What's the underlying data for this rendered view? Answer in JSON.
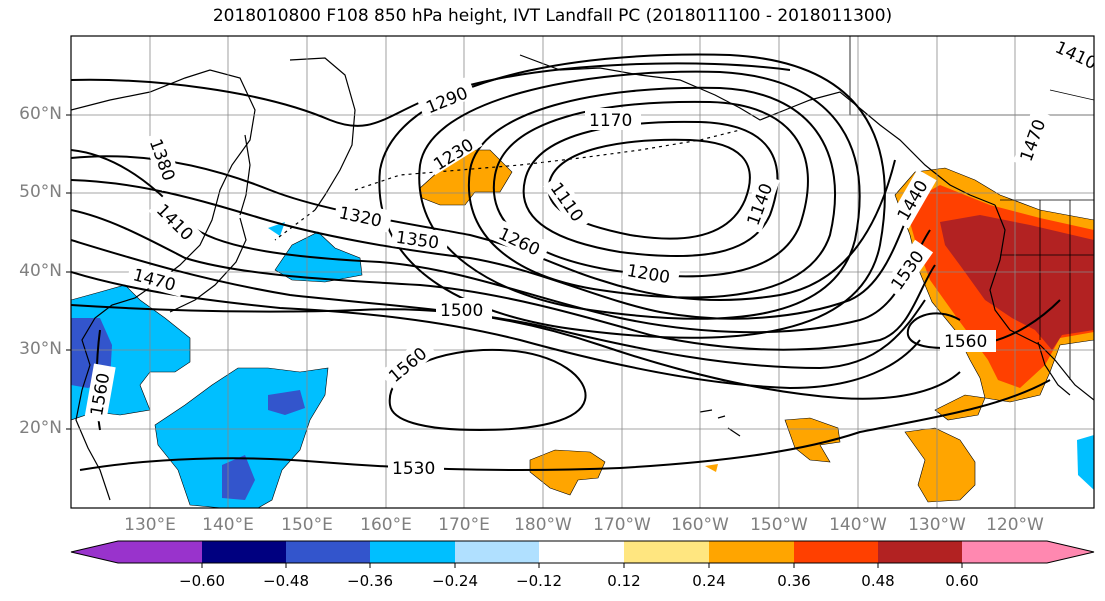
{
  "title": "2018010800 F108 850 hPa height, IVT Landfall PC (2018011100 - 2018011300)",
  "map": {
    "projection": "plate-carree",
    "lon_range": [
      120,
      250
    ],
    "lat_range": [
      10,
      70
    ],
    "grid": true,
    "lat_ticks": [
      "60°N",
      "50°N",
      "40°N",
      "30°N",
      "20°N"
    ],
    "lon_ticks": [
      "130°E",
      "140°E",
      "150°E",
      "160°E",
      "170°E",
      "180°W",
      "170°W",
      "160°W",
      "150°W",
      "140°W",
      "130°W",
      "120°W"
    ],
    "contour_color": "#000000",
    "coastline_color": "#000000",
    "contour_labels": [
      "1290",
      "1230",
      "1170",
      "1380",
      "1410",
      "1320",
      "1350",
      "1260",
      "1110",
      "1140",
      "1440",
      "1200",
      "1470",
      "1500",
      "1530",
      "1560",
      "1560",
      "1560",
      "1530",
      "1470",
      "1410"
    ]
  },
  "colorbar": {
    "ticks": [
      "−0.60",
      "−0.48",
      "−0.36",
      "−0.24",
      "−0.12",
      "0.12",
      "0.24",
      "0.36",
      "0.48",
      "0.60"
    ],
    "colors": [
      "#9933cc",
      "#000080",
      "#3355cc",
      "#00bfff",
      "#b0e0ff",
      "#ffffff",
      "#ffe680",
      "#ffa500",
      "#ff4000",
      "#b22222",
      "#ff88b0"
    ],
    "extend": "both"
  }
}
